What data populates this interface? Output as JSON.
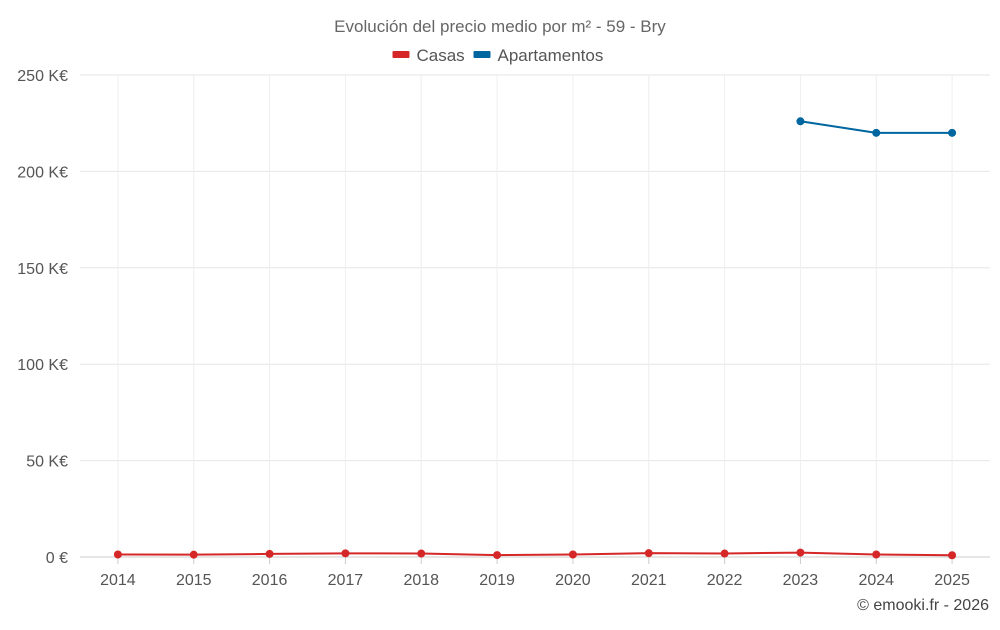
{
  "chart_data": {
    "type": "line",
    "title": "Evolución del precio medio por m² - 59 - Bry",
    "credit": "© emooki.fr - 2026",
    "categories": [
      "2014",
      "2015",
      "2016",
      "2017",
      "2018",
      "2019",
      "2020",
      "2021",
      "2022",
      "2023",
      "2024",
      "2025"
    ],
    "ylim": [
      0,
      250000
    ],
    "yticks": [
      {
        "value": 0,
        "label": "0 €"
      },
      {
        "value": 50000,
        "label": "50 K€"
      },
      {
        "value": 100000,
        "label": "100 K€"
      },
      {
        "value": 150000,
        "label": "150 K€"
      },
      {
        "value": 200000,
        "label": "200 K€"
      },
      {
        "value": 250000,
        "label": "250 K€"
      }
    ],
    "grid": true,
    "legend_position": "top-center",
    "series": [
      {
        "name": "Casas",
        "color": "#d62728",
        "values": [
          1300,
          1200,
          1600,
          1900,
          1800,
          1000,
          1300,
          2000,
          1800,
          2300,
          1300,
          900
        ]
      },
      {
        "name": "Apartamentos",
        "color": "#0066a0",
        "values": [
          null,
          null,
          null,
          null,
          null,
          null,
          null,
          null,
          null,
          226000,
          220000,
          220000
        ]
      }
    ]
  }
}
